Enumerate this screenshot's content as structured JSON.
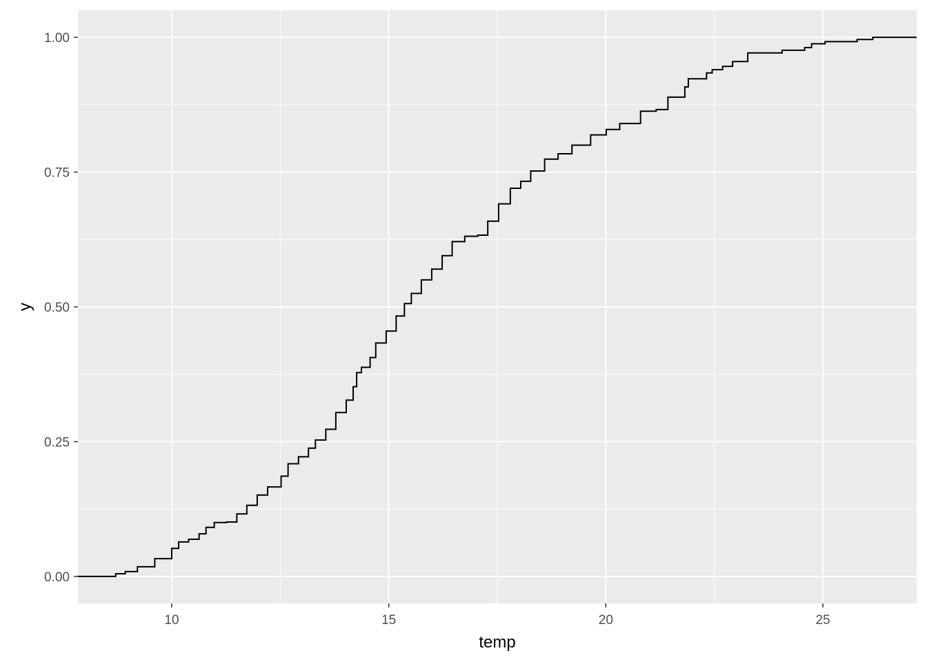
{
  "chart_data": {
    "type": "line",
    "subtype": "step (empirical cumulative distribution)",
    "title": "",
    "xlabel": "temp",
    "ylabel": "y",
    "xlim": [
      7.84,
      27.16
    ],
    "ylim": [
      -0.05,
      1.05
    ],
    "x_ticks": [
      10,
      15,
      20,
      25
    ],
    "x_tick_labels": [
      "10",
      "15",
      "20",
      "25"
    ],
    "y_ticks": [
      0,
      0.25,
      0.5,
      0.75,
      1
    ],
    "y_tick_labels": [
      "0.00",
      "0.25",
      "0.50",
      "0.75",
      "1.00"
    ],
    "grid": true,
    "panel_background": "#EBEBEB",
    "grid_color": "#FFFFFF",
    "line_color": "#000000",
    "points": [
      [
        8.71,
        0.005
      ],
      [
        8.93,
        0.009
      ],
      [
        9.21,
        0.018
      ],
      [
        9.61,
        0.033
      ],
      [
        10.0,
        0.052
      ],
      [
        10.16,
        0.064
      ],
      [
        10.39,
        0.069
      ],
      [
        10.63,
        0.079
      ],
      [
        10.79,
        0.091
      ],
      [
        10.98,
        0.1
      ],
      [
        11.26,
        0.101
      ],
      [
        11.5,
        0.116
      ],
      [
        11.73,
        0.132
      ],
      [
        11.97,
        0.151
      ],
      [
        12.21,
        0.166
      ],
      [
        12.52,
        0.186
      ],
      [
        12.68,
        0.209
      ],
      [
        12.92,
        0.222
      ],
      [
        13.15,
        0.238
      ],
      [
        13.31,
        0.253
      ],
      [
        13.55,
        0.273
      ],
      [
        13.78,
        0.304
      ],
      [
        14.02,
        0.327
      ],
      [
        14.18,
        0.352
      ],
      [
        14.26,
        0.378
      ],
      [
        14.37,
        0.388
      ],
      [
        14.57,
        0.406
      ],
      [
        14.7,
        0.433
      ],
      [
        14.94,
        0.455
      ],
      [
        15.17,
        0.483
      ],
      [
        15.36,
        0.506
      ],
      [
        15.52,
        0.525
      ],
      [
        15.75,
        0.55
      ],
      [
        15.99,
        0.57
      ],
      [
        16.23,
        0.595
      ],
      [
        16.46,
        0.621
      ],
      [
        16.75,
        0.631
      ],
      [
        17.05,
        0.633
      ],
      [
        17.28,
        0.659
      ],
      [
        17.53,
        0.691
      ],
      [
        17.8,
        0.72
      ],
      [
        18.04,
        0.733
      ],
      [
        18.27,
        0.752
      ],
      [
        18.59,
        0.774
      ],
      [
        18.9,
        0.784
      ],
      [
        19.22,
        0.8
      ],
      [
        19.65,
        0.819
      ],
      [
        20.01,
        0.829
      ],
      [
        20.32,
        0.84
      ],
      [
        20.8,
        0.863
      ],
      [
        21.16,
        0.866
      ],
      [
        21.43,
        0.889
      ],
      [
        21.82,
        0.908
      ],
      [
        21.9,
        0.923
      ],
      [
        22.32,
        0.934
      ],
      [
        22.45,
        0.94
      ],
      [
        22.69,
        0.946
      ],
      [
        22.92,
        0.955
      ],
      [
        23.27,
        0.971
      ],
      [
        24.06,
        0.976
      ],
      [
        24.58,
        0.981
      ],
      [
        24.74,
        0.988
      ],
      [
        25.05,
        0.992
      ],
      [
        25.79,
        0.996
      ],
      [
        26.15,
        1.0
      ]
    ]
  }
}
